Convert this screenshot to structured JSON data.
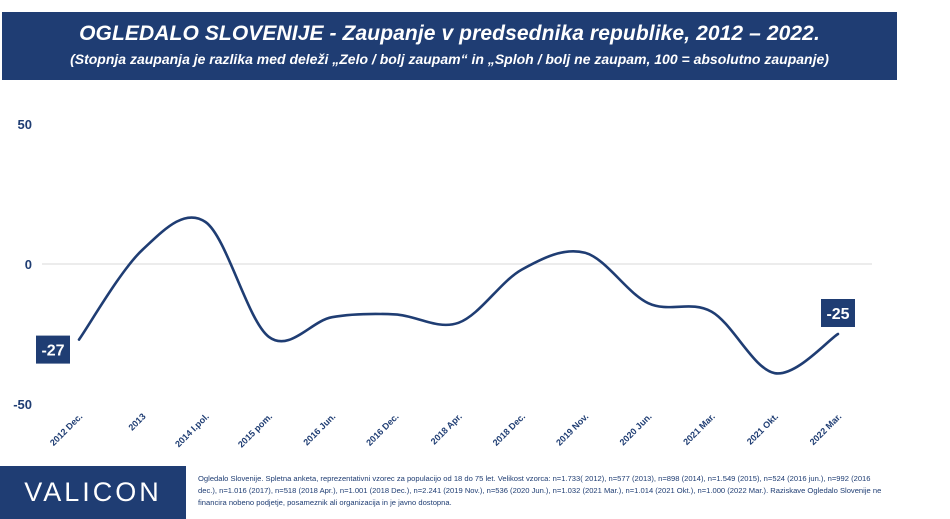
{
  "header": {
    "title": "OGLEDALO SLOVENIJE - Zaupanje v predsednika republike, 2012 – 2022.",
    "subtitle": "(Stopnja zaupanja je razlika med deleži „Zelo / bolj zaupam“ in „Sploh / bolj ne zaupam, 100 = absolutno zaupanje)"
  },
  "chart_data": {
    "type": "line",
    "categories": [
      "2012 Dec.",
      "2013",
      "2014 I.pol.",
      "2015 pom.",
      "2016 Jun.",
      "2016 Dec.",
      "2018 Apr.",
      "2018 Dec.",
      "2019 Nov.",
      "2020 Jun.",
      "2021 Mar.",
      "2021 Okt.",
      "2022 Mar."
    ],
    "series": [
      {
        "values": [
          -27,
          5,
          15,
          -26,
          -19,
          -18,
          -21,
          -2,
          4,
          -14,
          -17,
          -39,
          -25
        ]
      }
    ],
    "y_ticks": [
      "50",
      "0",
      "-50"
    ],
    "ylim": [
      -50,
      50
    ],
    "data_labels": {
      "first": "-27",
      "last": "-25"
    },
    "colors": {
      "line": "#1f3d73",
      "label_bg": "#1f3d73",
      "zero_line": "#d9d9d9"
    }
  },
  "footer": {
    "logo": "VALICON",
    "note": "Ogledalo Slovenije. Spletna anketa, reprezentativni vzorec za populacijo od 18 do 75 let. Velikost vzorca: n=1.733( 2012), n=577 (2013), n=898 (2014), n=1.549 (2015), n=524 (2016 jun.), n=992 (2016 dec.), n=1.016 (2017), n=518 (2018 Apr.), n=1.001 (2018 Dec.), n=2.241 (2019 Nov.), n=536 (2020 Jun.), n=1.032 (2021 Mar.), n=1.014 (2021 Okt.), n=1.000 (2022 Mar.). Raziskave Ogledalo Slovenije ne financira nobeno podjetje, posameznik ali organizacija in je javno dostopna."
  }
}
